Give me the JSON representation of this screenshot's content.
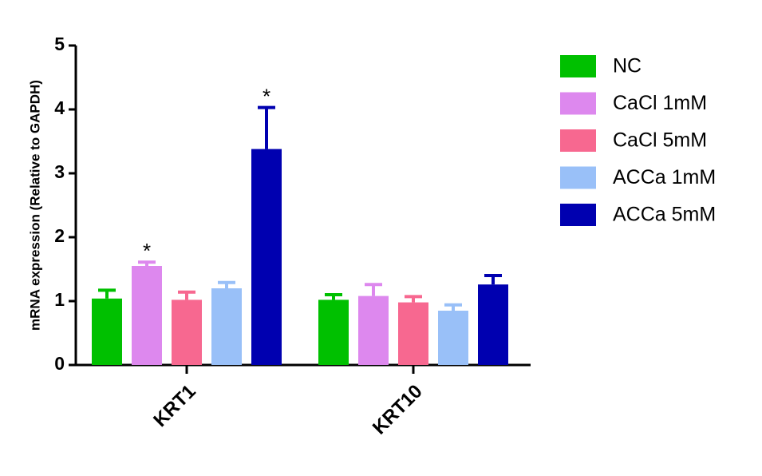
{
  "chart_data": {
    "type": "bar",
    "y_label": "mRNA expression (Relative to GAPDH)",
    "categories": [
      "KRT1",
      "KRT10"
    ],
    "series": [
      {
        "name": "NC",
        "color": "#00c000",
        "values": [
          1.04,
          1.02
        ],
        "errors": [
          0.13,
          0.08
        ]
      },
      {
        "name": "CaCl 1mM",
        "color": "#dd88ee",
        "values": [
          1.55,
          1.08
        ],
        "errors": [
          0.06,
          0.18
        ]
      },
      {
        "name": "CaCl 5mM",
        "color": "#f76890",
        "values": [
          1.02,
          0.98
        ],
        "errors": [
          0.12,
          0.09
        ]
      },
      {
        "name": "ACCa 1mM",
        "color": "#99c0f8",
        "values": [
          1.2,
          0.85
        ],
        "errors": [
          0.09,
          0.09
        ]
      },
      {
        "name": "ACCa 5mM",
        "color": "#0000b0",
        "values": [
          3.38,
          1.26
        ],
        "errors": [
          0.65,
          0.14
        ]
      }
    ],
    "annotations": [
      {
        "text": "*",
        "category": "KRT1",
        "series": "CaCl 1mM"
      },
      {
        "text": "*",
        "category": "KRT1",
        "series": "ACCa 5mM"
      }
    ],
    "ylim": [
      0,
      5
    ],
    "yticks": [
      0,
      1,
      2,
      3,
      4,
      5
    ],
    "legend": "right"
  }
}
